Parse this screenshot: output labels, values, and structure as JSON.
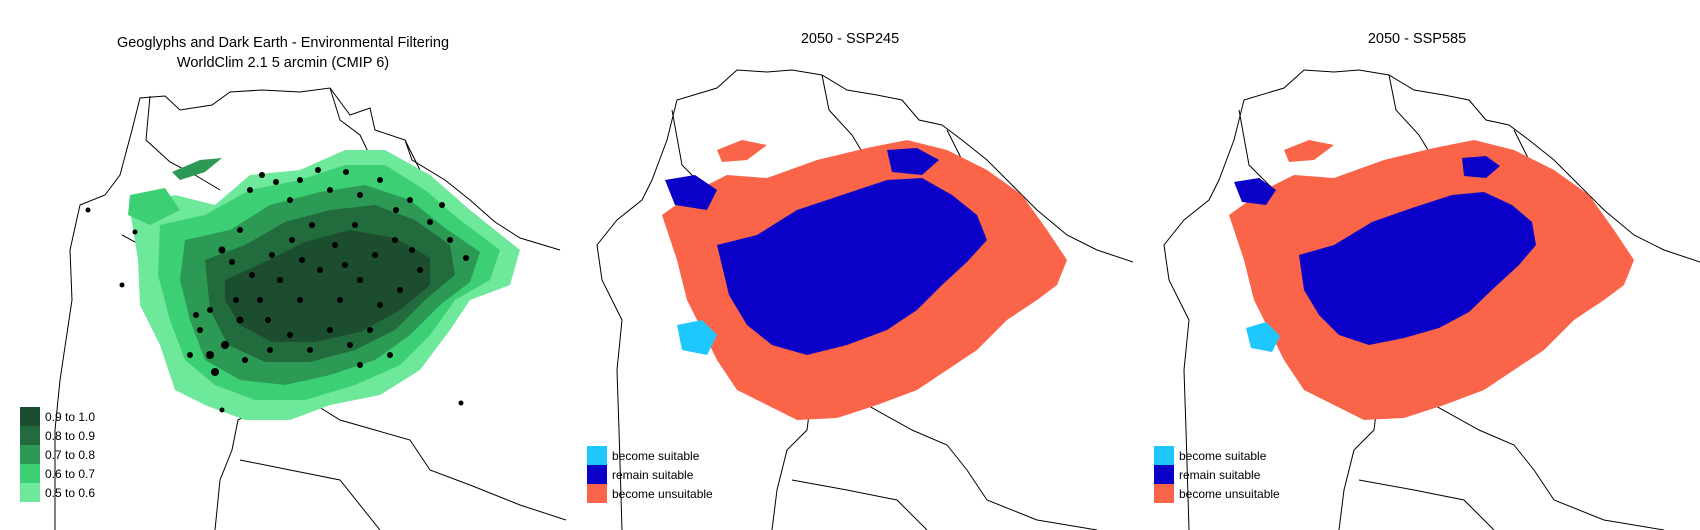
{
  "panels": [
    {
      "title_line1": "Geoglyphs and Dark Earth - Environmental Filtering",
      "title_line2": "WorldClim 2.1 5 arcmin (CMIP 6)",
      "legend": [
        {
          "label": "0.9 to 1.0",
          "color": "#1b4d2e"
        },
        {
          "label": "0.8 to 0.9",
          "color": "#226b3d"
        },
        {
          "label": "0.7 to 0.8",
          "color": "#2c9a55"
        },
        {
          "label": "0.6 to 0.7",
          "color": "#3ccf73"
        },
        {
          "label": "0.5 to 0.6",
          "color": "#6ee89b"
        }
      ]
    },
    {
      "title": "2050 - SSP245",
      "legend": [
        {
          "label": "become suitable",
          "color": "#1ec8ff"
        },
        {
          "label": "remain suitable",
          "color": "#0a00c8"
        },
        {
          "label": "become unsuitable",
          "color": "#fa6448"
        }
      ]
    },
    {
      "title": "2050 - SSP585",
      "legend": [
        {
          "label": "become suitable",
          "color": "#1ec8ff"
        },
        {
          "label": "remain suitable",
          "color": "#0a00c8"
        },
        {
          "label": "become unsuitable",
          "color": "#fa6448"
        }
      ]
    }
  ]
}
